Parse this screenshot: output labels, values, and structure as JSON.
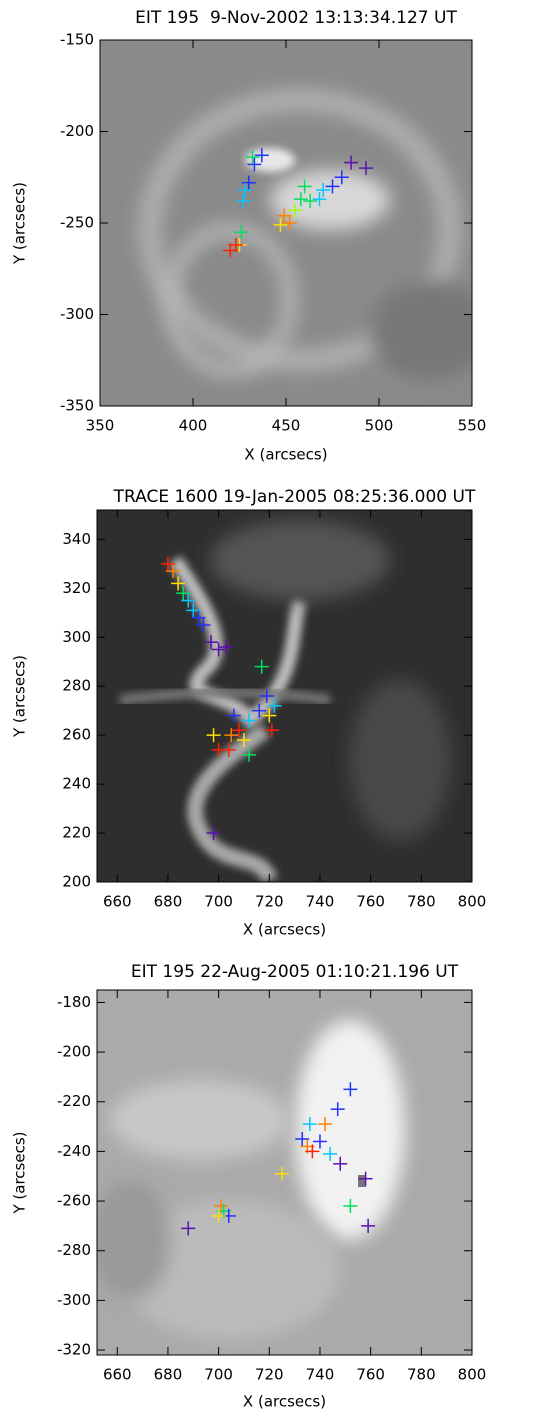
{
  "chart_data": [
    {
      "type": "scatter",
      "title": "EIT 195  9-Nov-2002 13:13:34.127 UT",
      "xlabel": "X (arcsecs)",
      "ylabel": "Y (arcsecs)",
      "xlim": [
        350,
        550
      ],
      "ylim": [
        -350,
        -150
      ],
      "xticks": [
        350,
        400,
        450,
        500,
        550
      ],
      "yticks": [
        -350,
        -300,
        -250,
        -200,
        -150
      ],
      "x": [
        493,
        485,
        480,
        437,
        433,
        430,
        475,
        470,
        468,
        428,
        427,
        432,
        460,
        458,
        463,
        426,
        455,
        447,
        449,
        452,
        425,
        420,
        423
      ],
      "y": [
        -220,
        -217,
        -225,
        -213,
        -218,
        -228,
        -230,
        -232,
        -237,
        -232,
        -238,
        -214,
        -230,
        -237,
        -238,
        -255,
        -243,
        -251,
        -246,
        -250,
        -262,
        -265,
        -262
      ],
      "colors": [
        "#5a10b0",
        "#5a10b0",
        "#2030ff",
        "#2030ff",
        "#2030ff",
        "#2030ff",
        "#2030ff",
        "#00c8ff",
        "#00c8ff",
        "#00c8ff",
        "#00c8ff",
        "#00e060",
        "#00e060",
        "#00e060",
        "#00e060",
        "#00e060",
        "#a0ff00",
        "#ffe000",
        "#ff8000",
        "#ff8000",
        "#ffe000",
        "#ff2000",
        "#ff2000"
      ]
    },
    {
      "type": "scatter",
      "title": "TRACE 1600 19-Jan-2005 08:25:36.000 UT",
      "xlabel": "X (arcsecs)",
      "ylabel": "Y (arcsecs)",
      "xlim": [
        652,
        800
      ],
      "ylim": [
        200,
        352
      ],
      "xticks": [
        660,
        680,
        700,
        720,
        740,
        760,
        780,
        800
      ],
      "yticks": [
        200,
        220,
        240,
        260,
        280,
        300,
        320,
        340
      ],
      "x": [
        680,
        682,
        684,
        686,
        688,
        690,
        692,
        694,
        697,
        700,
        703,
        717,
        719,
        716,
        722,
        720,
        712,
        706,
        708,
        705,
        710,
        698,
        700,
        704,
        712,
        721,
        698
      ],
      "y": [
        330,
        327,
        322,
        318,
        315,
        311,
        308,
        305,
        298,
        295,
        296,
        288,
        276,
        270,
        272,
        268,
        266,
        268,
        262,
        260,
        258,
        260,
        254,
        254,
        252,
        262,
        220
      ],
      "colors": [
        "#ff2000",
        "#ff8000",
        "#ffe000",
        "#00e060",
        "#00c8ff",
        "#00c8ff",
        "#2030ff",
        "#2030ff",
        "#5a10b0",
        "#5a10b0",
        "#5a10b0",
        "#00e060",
        "#2030ff",
        "#2030ff",
        "#00c8ff",
        "#ffe000",
        "#00c8ff",
        "#2030ff",
        "#ff2000",
        "#ff8000",
        "#ffe000",
        "#ffe000",
        "#ff2000",
        "#ff2000",
        "#00e060",
        "#ff2000",
        "#5a10b0"
      ]
    },
    {
      "type": "scatter",
      "title": "EIT 195 22-Aug-2005 01:10:21.196 UT",
      "xlabel": "X (arcsecs)",
      "ylabel": "Y (arcsecs)",
      "xlim": [
        652,
        800
      ],
      "ylim": [
        -322,
        -175
      ],
      "xticks": [
        660,
        680,
        700,
        720,
        740,
        760,
        780,
        800
      ],
      "yticks": [
        -320,
        -300,
        -280,
        -260,
        -240,
        -220,
        -200,
        -180
      ],
      "x": [
        752,
        747,
        736,
        742,
        733,
        740,
        744,
        735,
        737,
        748,
        758,
        725,
        752,
        759,
        701,
        702,
        704,
        688,
        700
      ],
      "y": [
        -215,
        -223,
        -229,
        -229,
        -235,
        -236,
        -241,
        -238,
        -240,
        -245,
        -251,
        -249,
        -262,
        -270,
        -262,
        -264,
        -266,
        -271,
        -266
      ],
      "colors": [
        "#2030ff",
        "#2030ff",
        "#00c8ff",
        "#ff8000",
        "#2030ff",
        "#2030ff",
        "#00c8ff",
        "#ff8000",
        "#ff2000",
        "#5a10b0",
        "#5a10b0",
        "#ffe000",
        "#00e060",
        "#5a10b0",
        "#ff8000",
        "#00e060",
        "#2030ff",
        "#5a10b0",
        "#ffe000"
      ]
    }
  ]
}
